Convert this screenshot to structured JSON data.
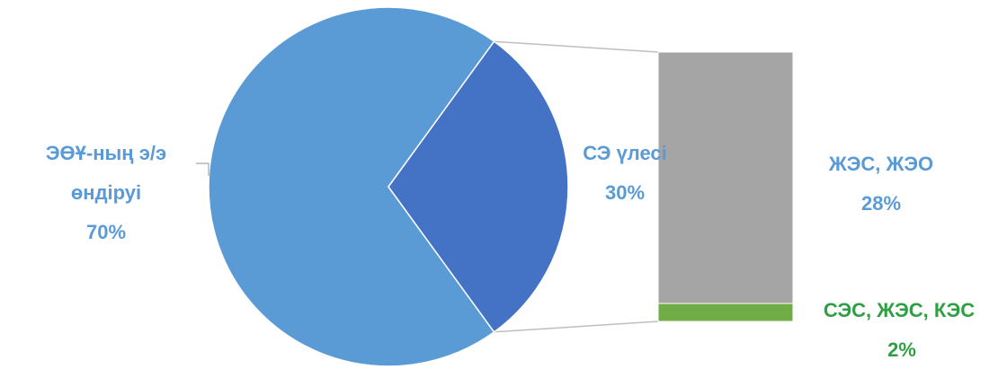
{
  "chart_data": {
    "type": "pie",
    "subtype": "bar-of-pie",
    "pie": {
      "slices": [
        {
          "label_line1": "ЭӨҰ-ның э/э",
          "label_line2": "өндіруі",
          "pct_label": "70%",
          "value": 70,
          "color": "#5B9BD5"
        },
        {
          "label_line1": "СЭ үлесі",
          "label_line2": "",
          "pct_label": "30%",
          "value": 30,
          "color": "#4472C4"
        }
      ]
    },
    "bar": {
      "segments": [
        {
          "label": "ЖЭС, ЖЭО",
          "pct_label": "28%",
          "value": 28,
          "color": "#A5A5A5",
          "label_color": "#5B9BD5"
        },
        {
          "label": "СЭС, ЖЭС, КЭС",
          "pct_label": "2%",
          "value": 2,
          "color": "#70AD47",
          "label_color": "#2EA043"
        }
      ]
    },
    "connector_color": "#BFBFBF",
    "title": "",
    "legend": "none"
  }
}
